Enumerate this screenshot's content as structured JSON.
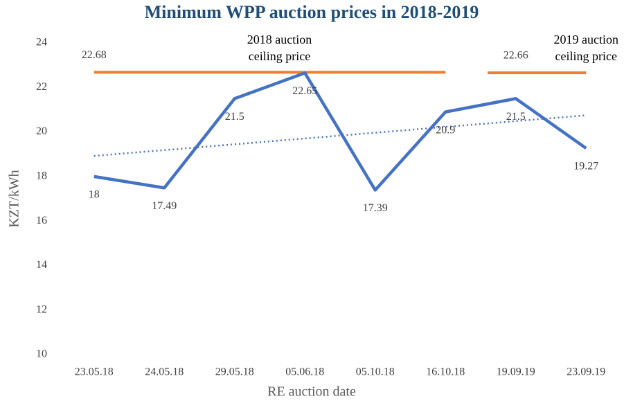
{
  "chart_data": {
    "type": "line",
    "title": "Minimum WPP auction prices in 2018-2019",
    "xlabel": "RE auction date",
    "ylabel": "KZT/kWh",
    "categories": [
      "23.05.18",
      "24.05.18",
      "29.05.18",
      "05.06.18",
      "05.10.18",
      "16.10.18",
      "19.09.19",
      "23.09.19"
    ],
    "series": [
      {
        "color": "#4472c4",
        "values": [
          18,
          17.49,
          21.5,
          22.65,
          17.39,
          20.9,
          21.5,
          19.27
        ]
      }
    ],
    "trendline": true,
    "ylim": [
      10,
      24
    ],
    "yticks": [
      10,
      12,
      14,
      16,
      18,
      20,
      22,
      24
    ],
    "grid": false,
    "annotations": [
      {
        "value": 22.68,
        "color": "#ed7d31",
        "start": "23.05.18",
        "end": "16.10.18",
        "text_lines": [
          "2018 auction",
          "ceiling price"
        ]
      },
      {
        "value": 22.66,
        "color": "#ed7d31",
        "start": "19.09.19",
        "end": "23.09.19",
        "text_lines": [
          "2019 auction",
          "ceiling price"
        ]
      }
    ]
  }
}
